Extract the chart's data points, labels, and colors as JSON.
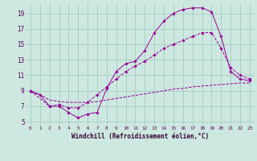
{
  "xlabel": "Windchill (Refroidissement éolien,°C)",
  "bg_color": "#cde8e0",
  "line_color": "#990099",
  "grid_color": "#9dc8bc",
  "xlim_min": -0.5,
  "xlim_max": 23.5,
  "ylim_min": 4.5,
  "ylim_max": 20.3,
  "xticks": [
    0,
    1,
    2,
    3,
    4,
    5,
    6,
    7,
    8,
    9,
    10,
    11,
    12,
    13,
    14,
    15,
    16,
    17,
    18,
    19,
    20,
    21,
    22,
    23
  ],
  "yticks": [
    5,
    7,
    9,
    11,
    13,
    15,
    17,
    19
  ],
  "line1_x": [
    0,
    1,
    2,
    3,
    4,
    5,
    6,
    7,
    8,
    9,
    10,
    11,
    12,
    13,
    14,
    15,
    16,
    17,
    18,
    19,
    20,
    21,
    22,
    23
  ],
  "line1_y": [
    9.0,
    8.5,
    7.0,
    7.0,
    6.2,
    5.5,
    6.0,
    6.2,
    9.3,
    11.5,
    12.5,
    12.8,
    14.2,
    16.5,
    18.0,
    19.0,
    19.5,
    19.7,
    19.7,
    19.2,
    16.0,
    11.5,
    10.5,
    10.3
  ],
  "line2_x": [
    0,
    2,
    3,
    4,
    5,
    6,
    7,
    8,
    9,
    10,
    11,
    12,
    13,
    14,
    15,
    16,
    17,
    18,
    19,
    20,
    21,
    22,
    23
  ],
  "line2_y": [
    9.0,
    7.0,
    7.2,
    6.8,
    6.8,
    7.5,
    8.5,
    9.5,
    10.5,
    11.5,
    12.2,
    12.8,
    13.6,
    14.5,
    15.0,
    15.5,
    16.0,
    16.5,
    16.5,
    14.5,
    12.0,
    11.0,
    10.5
  ],
  "line3_x": [
    0,
    1,
    2,
    3,
    4,
    5,
    6,
    7,
    8,
    9,
    10,
    11,
    12,
    13,
    14,
    15,
    16,
    17,
    18,
    19,
    20,
    21,
    22,
    23
  ],
  "line3_y": [
    8.8,
    8.5,
    7.8,
    7.6,
    7.5,
    7.5,
    7.5,
    7.6,
    7.8,
    8.0,
    8.2,
    8.4,
    8.6,
    8.8,
    9.0,
    9.2,
    9.3,
    9.5,
    9.6,
    9.7,
    9.8,
    9.9,
    10.0,
    10.0
  ],
  "tick_color": "#550055",
  "xlabel_color": "#330033",
  "xlabel_fontsize": 5.5,
  "tick_fontsize_x": 4.3,
  "tick_fontsize_y": 5.5
}
